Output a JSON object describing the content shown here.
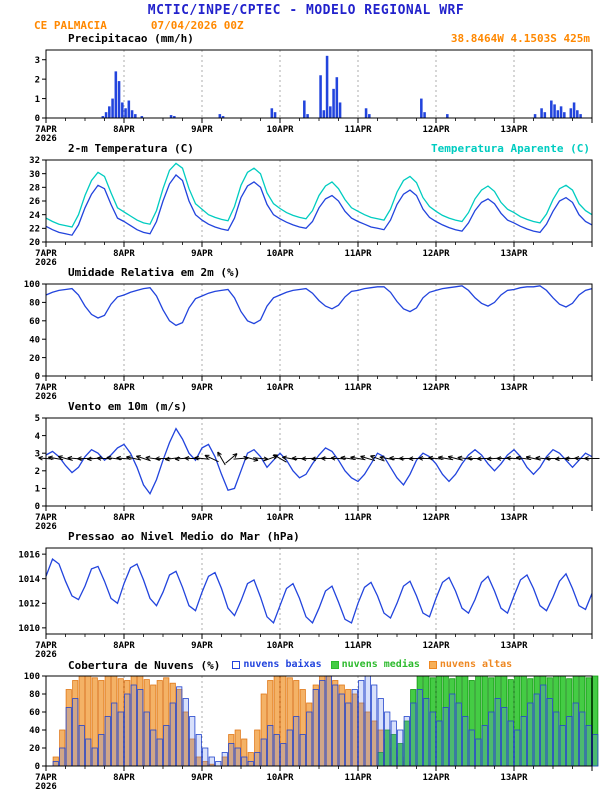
{
  "header": {
    "title": "MCTIC/INPE/CPTEC - MODELO REGIONAL WRF",
    "station": "CE PALMACIA",
    "run": "07/04/2026 00Z",
    "coords": "38.8464W 4.1503S 425m"
  },
  "colors": {
    "title_blue": "#2222cc",
    "accent_orange": "#ff8800",
    "line_blue": "#2244dd",
    "apparent_cyan": "#00ccc0",
    "cloud_green": "#2dbb2d",
    "cloud_orange": "#ee8822",
    "axis": "#000000"
  },
  "x_axis": {
    "xlim_hours": [
      0,
      168
    ],
    "ticks": [
      {
        "h": 0,
        "label": "7APR",
        "sub": "2026"
      },
      {
        "h": 24,
        "label": "8APR"
      },
      {
        "h": 48,
        "label": "9APR"
      },
      {
        "h": 72,
        "label": "10APR"
      },
      {
        "h": 96,
        "label": "11APR"
      },
      {
        "h": 120,
        "label": "12APR"
      },
      {
        "h": 144,
        "label": "13APR"
      }
    ]
  },
  "chart_data": [
    {
      "id": "precipitation",
      "type": "bar",
      "title": "Precipitacao (mm/h)",
      "xlabel": "",
      "ylabel": "mm/h",
      "ylim": [
        0,
        3.5
      ],
      "yticks": [
        0,
        1,
        2,
        3
      ],
      "bar_color": "#2244dd",
      "points_hour_value": [
        [
          17,
          0.1
        ],
        [
          18,
          0.3
        ],
        [
          19,
          0.6
        ],
        [
          20,
          1.0
        ],
        [
          21,
          2.4
        ],
        [
          22,
          1.9
        ],
        [
          23,
          0.8
        ],
        [
          24,
          0.5
        ],
        [
          25,
          0.9
        ],
        [
          26,
          0.4
        ],
        [
          27,
          0.2
        ],
        [
          29,
          0.1
        ],
        [
          38,
          0.15
        ],
        [
          39,
          0.1
        ],
        [
          53,
          0.2
        ],
        [
          54,
          0.1
        ],
        [
          69,
          0.5
        ],
        [
          70,
          0.3
        ],
        [
          79,
          0.9
        ],
        [
          80,
          0.2
        ],
        [
          84,
          2.2
        ],
        [
          85,
          0.4
        ],
        [
          86,
          3.2
        ],
        [
          87,
          0.6
        ],
        [
          88,
          1.5
        ],
        [
          89,
          2.1
        ],
        [
          90,
          0.8
        ],
        [
          98,
          0.5
        ],
        [
          99,
          0.2
        ],
        [
          115,
          1.0
        ],
        [
          116,
          0.3
        ],
        [
          123,
          0.2
        ],
        [
          150,
          0.2
        ],
        [
          152,
          0.5
        ],
        [
          153,
          0.3
        ],
        [
          155,
          0.9
        ],
        [
          156,
          0.7
        ],
        [
          157,
          0.4
        ],
        [
          158,
          0.6
        ],
        [
          159,
          0.3
        ],
        [
          161,
          0.5
        ],
        [
          162,
          0.8
        ],
        [
          163,
          0.4
        ],
        [
          164,
          0.2
        ]
      ]
    },
    {
      "id": "temperature",
      "type": "line",
      "title": "2-m Temperatura (C)",
      "legend_right": "Temperatura Aparente (C)",
      "xlabel": "",
      "ylabel": "C",
      "ylim": [
        20,
        32
      ],
      "yticks": [
        20,
        22,
        24,
        26,
        28,
        30,
        32
      ],
      "step_hours": 2,
      "series": [
        {
          "name": "2-m Temperatura (C)",
          "color": "#2244dd",
          "values": [
            22.3,
            21.8,
            21.4,
            21.2,
            21.0,
            22.5,
            25.0,
            27.0,
            28.3,
            27.8,
            25.5,
            23.5,
            23.0,
            22.4,
            21.8,
            21.4,
            21.2,
            23.0,
            26.0,
            28.5,
            29.8,
            29.0,
            26.0,
            24.0,
            23.2,
            22.6,
            22.2,
            21.9,
            21.7,
            23.5,
            26.5,
            28.2,
            28.8,
            28.0,
            25.5,
            24.0,
            23.4,
            22.9,
            22.5,
            22.2,
            22.0,
            23.0,
            25.0,
            26.3,
            26.8,
            26.0,
            24.5,
            23.5,
            23.0,
            22.6,
            22.2,
            22.0,
            21.8,
            23.2,
            25.5,
            27.0,
            27.6,
            26.8,
            24.8,
            23.6,
            23.0,
            22.5,
            22.1,
            21.8,
            21.6,
            22.8,
            24.6,
            25.8,
            26.3,
            25.6,
            24.2,
            23.2,
            22.8,
            22.3,
            21.9,
            21.6,
            21.4,
            22.6,
            24.5,
            26.0,
            26.5,
            25.8,
            24.0,
            23.0,
            22.5
          ]
        },
        {
          "name": "Temperatura Aparente (C)",
          "color": "#00ccc0",
          "values": [
            23.5,
            23.0,
            22.6,
            22.4,
            22.2,
            24.0,
            26.8,
            29.0,
            30.2,
            29.6,
            27.2,
            25.0,
            24.4,
            23.8,
            23.2,
            22.8,
            22.6,
            24.6,
            27.8,
            30.5,
            31.5,
            30.8,
            27.8,
            25.6,
            24.8,
            24.0,
            23.6,
            23.3,
            23.1,
            25.2,
            28.3,
            30.2,
            30.8,
            30.0,
            27.2,
            25.6,
            24.9,
            24.3,
            23.9,
            23.6,
            23.4,
            24.6,
            26.8,
            28.2,
            28.8,
            27.8,
            26.2,
            25.0,
            24.5,
            24.0,
            23.6,
            23.4,
            23.2,
            24.8,
            27.3,
            29.0,
            29.6,
            28.7,
            26.5,
            25.2,
            24.5,
            23.9,
            23.5,
            23.2,
            23.0,
            24.3,
            26.3,
            27.6,
            28.2,
            27.4,
            25.8,
            24.8,
            24.3,
            23.7,
            23.3,
            23.0,
            22.8,
            24.1,
            26.2,
            27.8,
            28.3,
            27.6,
            25.6,
            24.6,
            24.0
          ]
        }
      ]
    },
    {
      "id": "relative-humidity",
      "type": "line",
      "title": "Umidade Relativa em 2m (%)",
      "xlabel": "",
      "ylabel": "%",
      "ylim": [
        0,
        100
      ],
      "yticks": [
        0,
        20,
        40,
        60,
        80,
        100
      ],
      "step_hours": 2,
      "series": [
        {
          "name": "Umidade Relativa (%)",
          "color": "#2244dd",
          "values": [
            88,
            91,
            93,
            94,
            95,
            88,
            76,
            67,
            63,
            66,
            78,
            86,
            88,
            91,
            93,
            95,
            96,
            87,
            72,
            60,
            55,
            58,
            74,
            84,
            87,
            90,
            92,
            93,
            94,
            85,
            70,
            60,
            57,
            61,
            76,
            85,
            88,
            91,
            93,
            94,
            95,
            90,
            82,
            76,
            73,
            77,
            86,
            92,
            93,
            95,
            96,
            97,
            97,
            91,
            81,
            73,
            70,
            74,
            85,
            91,
            93,
            95,
            96,
            97,
            98,
            93,
            85,
            79,
            76,
            80,
            88,
            93,
            94,
            96,
            97,
            97,
            98,
            93,
            85,
            78,
            75,
            79,
            88,
            93,
            95
          ]
        }
      ]
    },
    {
      "id": "wind",
      "type": "line",
      "title": "Vento em 10m (m/s)",
      "xlabel": "",
      "ylabel": "m/s",
      "ylim": [
        0,
        5
      ],
      "yticks": [
        0,
        1,
        2,
        3,
        4,
        5
      ],
      "step_hours": 2,
      "series": [
        {
          "name": "Velocidade do vento (m/s)",
          "color": "#2244dd",
          "values": [
            2.9,
            3.1,
            2.8,
            2.3,
            1.9,
            2.2,
            2.8,
            3.2,
            3.0,
            2.6,
            2.9,
            3.3,
            3.5,
            3.0,
            2.2,
            1.2,
            0.7,
            1.5,
            2.6,
            3.6,
            4.4,
            3.8,
            3.0,
            2.6,
            3.3,
            3.5,
            2.8,
            1.8,
            0.9,
            1.0,
            2.0,
            3.0,
            3.2,
            2.8,
            2.2,
            2.6,
            3.0,
            2.6,
            2.0,
            1.6,
            1.8,
            2.4,
            2.9,
            3.3,
            3.1,
            2.6,
            2.0,
            1.6,
            1.4,
            1.8,
            2.4,
            3.0,
            2.8,
            2.2,
            1.6,
            1.2,
            1.8,
            2.6,
            3.0,
            2.8,
            2.4,
            1.8,
            1.4,
            1.8,
            2.4,
            2.9,
            3.2,
            2.9,
            2.4,
            2.0,
            2.4,
            2.9,
            3.2,
            2.8,
            2.2,
            1.8,
            2.2,
            2.8,
            3.2,
            3.0,
            2.6,
            2.2,
            2.6,
            3.0,
            2.8
          ]
        }
      ],
      "arrows": {
        "step_hours": 3,
        "y_value": 2.7,
        "color": "#000000",
        "directions_deg_from": [
          95,
          100,
          105,
          95,
          88,
          85,
          92,
          98,
          95,
          102,
          108,
          98,
          88,
          82,
          86,
          92,
          96,
          115,
          150,
          230,
          265,
          285,
          275,
          250,
          120,
          100,
          92,
          88,
          86,
          90,
          94,
          98,
          100,
          106,
          110,
          100,
          94,
          90,
          88,
          92,
          96,
          100,
          104,
          98,
          92,
          88,
          86,
          90,
          94,
          98,
          102,
          96,
          90,
          86,
          88,
          92,
          90
        ]
      }
    },
    {
      "id": "pressure",
      "type": "line",
      "title": "Pressao ao Nivel Medio do Mar (hPa)",
      "xlabel": "",
      "ylabel": "hPa",
      "ylim": [
        1009.5,
        1016.5
      ],
      "yticks": [
        1010,
        1012,
        1014,
        1016
      ],
      "step_hours": 2,
      "series": [
        {
          "name": "Pressao ao nivel medio do mar (hPa)",
          "color": "#2244dd",
          "values": [
            1014.2,
            1015.6,
            1015.2,
            1013.8,
            1012.6,
            1012.3,
            1013.4,
            1014.8,
            1015.0,
            1013.8,
            1012.4,
            1012.0,
            1013.6,
            1014.9,
            1015.2,
            1013.9,
            1012.4,
            1011.8,
            1012.9,
            1014.3,
            1014.6,
            1013.3,
            1011.8,
            1011.4,
            1012.9,
            1014.2,
            1014.5,
            1013.2,
            1011.6,
            1011.0,
            1012.2,
            1013.6,
            1013.9,
            1012.5,
            1010.9,
            1010.4,
            1011.8,
            1013.2,
            1013.6,
            1012.4,
            1010.9,
            1010.4,
            1011.6,
            1013.0,
            1013.4,
            1012.1,
            1010.7,
            1010.4,
            1012.0,
            1013.3,
            1013.7,
            1012.6,
            1011.2,
            1010.8,
            1012.0,
            1013.4,
            1013.8,
            1012.6,
            1011.2,
            1010.9,
            1012.4,
            1013.7,
            1014.1,
            1013.0,
            1011.6,
            1011.2,
            1012.3,
            1013.7,
            1014.2,
            1013.0,
            1011.6,
            1011.2,
            1012.6,
            1013.9,
            1014.3,
            1013.2,
            1011.8,
            1011.4,
            1012.5,
            1013.8,
            1014.4,
            1013.2,
            1011.8,
            1011.5,
            1012.8
          ]
        }
      ]
    },
    {
      "id": "cloud-cover",
      "type": "bar",
      "title": "Cobertura de Nuvens (%)",
      "xlabel": "",
      "ylabel": "%",
      "ylim": [
        0,
        100
      ],
      "yticks": [
        0,
        20,
        40,
        60,
        80,
        100
      ],
      "step_hours": 2,
      "legend": [
        {
          "label": "nuvens baixas",
          "color": "#2244dd",
          "swatch_fill": "#ffffff"
        },
        {
          "label": "nuvens medias",
          "color": "#2dbb2d",
          "swatch_fill": "#44cc44"
        },
        {
          "label": "nuvens altas",
          "color": "#ee8822",
          "swatch_fill": "#f6b05a"
        }
      ],
      "series": [
        {
          "name": "nuvens altas",
          "stroke": "#e07818",
          "fill": "#f4b266",
          "values": [
            0,
            10,
            40,
            85,
            95,
            100,
            100,
            98,
            95,
            100,
            100,
            97,
            95,
            100,
            100,
            96,
            90,
            95,
            98,
            92,
            85,
            60,
            30,
            10,
            5,
            2,
            0,
            10,
            35,
            40,
            30,
            15,
            40,
            80,
            95,
            100,
            100,
            98,
            95,
            85,
            70,
            90,
            100,
            100,
            95,
            90,
            85,
            80,
            70,
            60,
            50,
            40,
            30,
            20,
            10,
            5,
            2,
            0,
            0,
            0,
            0,
            0,
            0,
            0,
            0,
            0,
            0,
            0,
            0,
            0,
            0,
            0,
            0,
            0,
            0,
            0,
            0,
            0,
            0,
            0,
            0,
            0,
            0,
            0,
            0
          ]
        },
        {
          "name": "nuvens medias",
          "stroke": "#119911",
          "fill": "#44cc44",
          "values": [
            0,
            0,
            0,
            0,
            0,
            0,
            0,
            0,
            0,
            0,
            0,
            0,
            0,
            0,
            0,
            0,
            0,
            0,
            0,
            0,
            0,
            0,
            0,
            0,
            0,
            0,
            0,
            0,
            0,
            0,
            0,
            0,
            0,
            0,
            0,
            0,
            0,
            0,
            0,
            0,
            0,
            0,
            0,
            0,
            0,
            0,
            0,
            0,
            0,
            0,
            0,
            15,
            40,
            35,
            25,
            50,
            85,
            100,
            100,
            98,
            100,
            100,
            97,
            100,
            100,
            95,
            100,
            100,
            98,
            100,
            100,
            96,
            100,
            100,
            97,
            100,
            100,
            98,
            100,
            100,
            97,
            100,
            100,
            98,
            100
          ]
        },
        {
          "name": "nuvens baixas",
          "stroke": "#2244cc",
          "fill": "rgba(100,130,240,0.25)",
          "values": [
            0,
            5,
            20,
            65,
            75,
            45,
            30,
            20,
            35,
            55,
            70,
            60,
            80,
            90,
            85,
            60,
            40,
            30,
            45,
            70,
            88,
            75,
            55,
            35,
            20,
            10,
            5,
            15,
            25,
            20,
            10,
            5,
            15,
            30,
            45,
            35,
            25,
            40,
            55,
            35,
            60,
            85,
            95,
            100,
            90,
            80,
            70,
            85,
            95,
            100,
            90,
            75,
            60,
            50,
            40,
            55,
            70,
            85,
            75,
            60,
            50,
            65,
            80,
            70,
            55,
            40,
            30,
            45,
            60,
            75,
            65,
            50,
            40,
            55,
            70,
            80,
            90,
            75,
            60,
            45,
            55,
            70,
            60,
            45,
            35
          ]
        }
      ]
    }
  ]
}
